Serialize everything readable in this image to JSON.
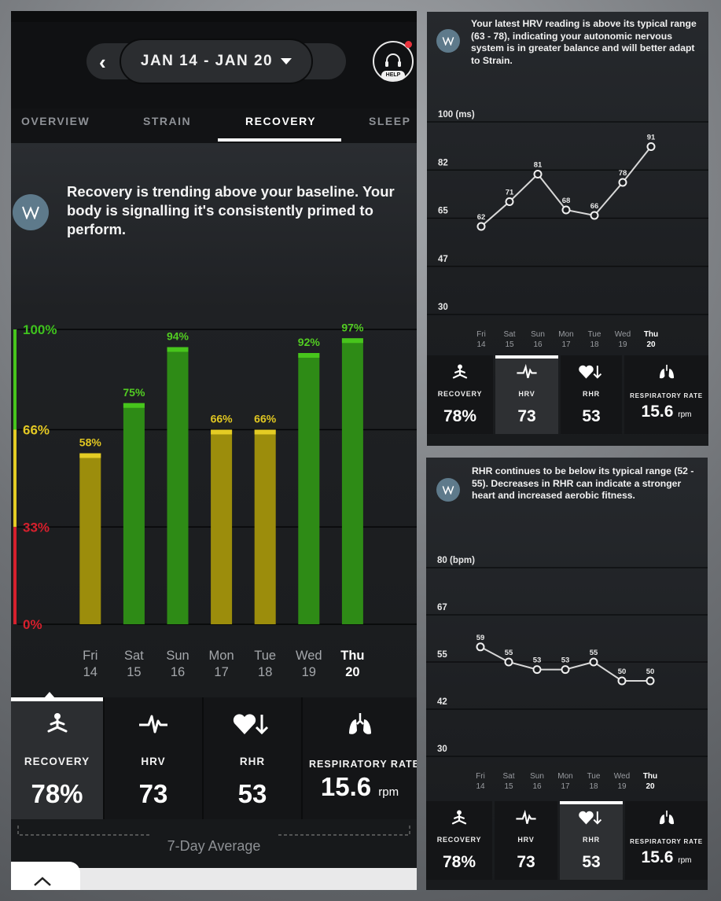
{
  "header": {
    "date_range": "JAN 14 - JAN 20",
    "help_label": "HELP"
  },
  "tabs": [
    {
      "label": "OVERVIEW"
    },
    {
      "label": "STRAIN"
    },
    {
      "label": "RECOVERY"
    },
    {
      "label": "SLEEP"
    }
  ],
  "active_tab": "RECOVERY",
  "insight": {
    "icon": "whoop-logo-icon",
    "text": "Recovery is trending above your baseline. Your body is signalling it's consistently primed to perform."
  },
  "colors": {
    "green": "#2e8b16",
    "green_cap": "#47c51c",
    "yellow": "#9c8d0c",
    "yellow_cap": "#e4cc24",
    "red": "#d6202d",
    "accent_blue": "#5e7a8b"
  },
  "chart_data": [
    {
      "type": "bar",
      "title": "",
      "categories": [
        "Fri 14",
        "Sat 15",
        "Sun 16",
        "Mon 17",
        "Tue 18",
        "Wed 19",
        "Thu 20"
      ],
      "days": [
        "Fri",
        "Sat",
        "Sun",
        "Mon",
        "Tue",
        "Wed",
        "Thu"
      ],
      "dates": [
        "14",
        "15",
        "16",
        "17",
        "18",
        "19",
        "20"
      ],
      "values": [
        58,
        75,
        94,
        66,
        66,
        92,
        97
      ],
      "value_labels": [
        "58%",
        "75%",
        "94%",
        "66%",
        "66%",
        "92%",
        "97%"
      ],
      "bar_colors": [
        "yellow",
        "green",
        "green",
        "yellow",
        "yellow",
        "green",
        "green"
      ],
      "y_ticks": [
        "100%",
        "66%",
        "33%",
        "0%"
      ],
      "ylim": [
        0,
        100
      ],
      "grid": true
    },
    {
      "type": "line",
      "title": "",
      "ylabel": "100 (ms)",
      "y_ticks": [
        "100 (ms)",
        "82",
        "65",
        "47",
        "30"
      ],
      "ylim": [
        30,
        100
      ],
      "days": [
        "Fri",
        "Sat",
        "Sun",
        "Mon",
        "Tue",
        "Wed",
        "Thu"
      ],
      "dates": [
        "14",
        "15",
        "16",
        "17",
        "18",
        "19",
        "20"
      ],
      "values": [
        62,
        71,
        81,
        68,
        66,
        78,
        91
      ],
      "grid": true
    },
    {
      "type": "line",
      "title": "",
      "ylabel": "80 (bpm)",
      "y_ticks": [
        "80 (bpm)",
        "67",
        "55",
        "42",
        "30"
      ],
      "ylim": [
        30,
        80
      ],
      "days": [
        "Fri",
        "Sat",
        "Sun",
        "Mon",
        "Tue",
        "Wed",
        "Thu"
      ],
      "dates": [
        "14",
        "15",
        "16",
        "17",
        "18",
        "19",
        "20"
      ],
      "values": [
        59,
        55,
        53,
        53,
        55,
        50,
        50
      ],
      "grid": true
    }
  ],
  "metrics": [
    {
      "label": "RECOVERY",
      "value": "78%",
      "icon": "meditation-person-icon"
    },
    {
      "label": "HRV",
      "value": "73",
      "icon": "heartbeat-pulse-icon"
    },
    {
      "label": "RHR",
      "value": "53",
      "icon": "heart-down-arrow-icon"
    },
    {
      "label": "RESPIRATORY RATE",
      "value": "15.6",
      "unit": "rpm",
      "icon": "lungs-icon"
    }
  ],
  "seven_day_label": "7-Day Average",
  "hrv_panel": {
    "insight": "Your latest HRV reading is above its typical range (63 - 78), indicating your autonomic nervous system is in greater balance and will better adapt to Strain.",
    "selected_metric": "HRV"
  },
  "rhr_panel": {
    "insight": "RHR continues to be below its typical range (52 - 55). Decreases in RHR can indicate a stronger heart and increased aerobic fitness.",
    "selected_metric": "RHR"
  }
}
